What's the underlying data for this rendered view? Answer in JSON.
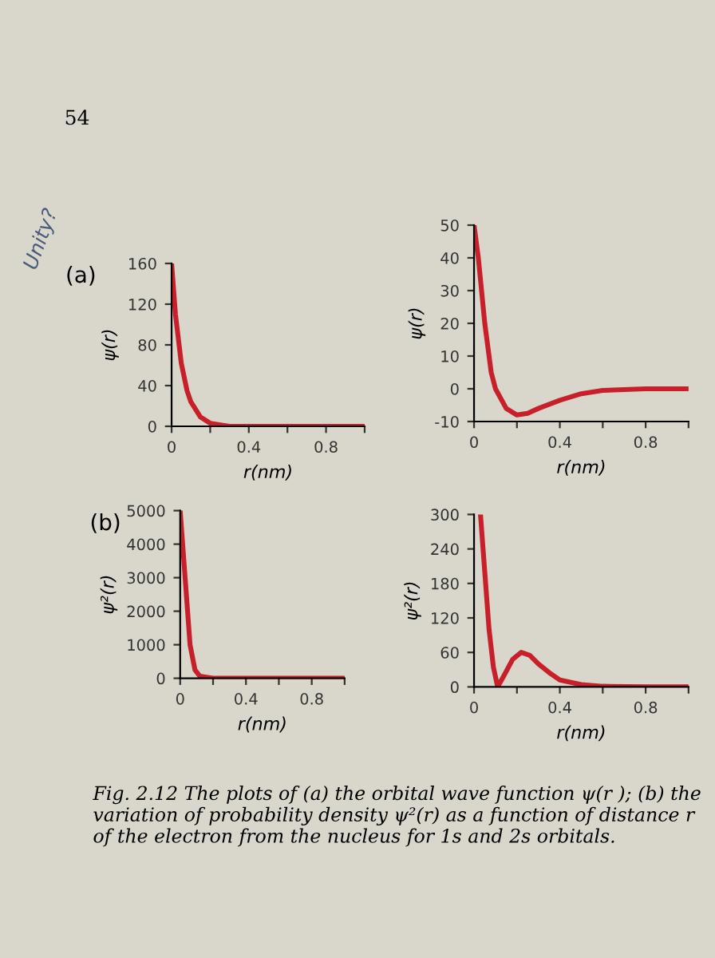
{
  "chart_data": [
    {
      "type": "line",
      "title": "(a)",
      "xlabel": "r(nm)",
      "ylabel": "ψ(r)",
      "annotations": [
        "54",
        "Unity?"
      ],
      "x": [
        0,
        0.02,
        0.05,
        0.08,
        0.1,
        0.15,
        0.2,
        0.3,
        0.5,
        1.0
      ],
      "series": [
        {
          "color": "#c8202a",
          "values": [
            160,
            110,
            62,
            35,
            24,
            9,
            3,
            0,
            0,
            0
          ]
        }
      ],
      "xlim": [
        0,
        1.0
      ],
      "xticks": [
        0,
        {
          "value": 0.2,
          "label": null
        },
        0.4,
        {
          "value": 0.6,
          "label": null
        },
        0.8,
        {
          "value": 1.0,
          "label": null
        }
      ],
      "ylim": [
        0,
        160
      ],
      "yticks": [
        0,
        40,
        80,
        120,
        160
      ],
      "grid": false
    },
    {
      "type": "line",
      "xlabel": "r(nm)",
      "ylabel": "ψ(r)",
      "x": [
        0,
        0.02,
        0.05,
        0.08,
        0.1,
        0.15,
        0.2,
        0.25,
        0.3,
        0.4,
        0.5,
        0.6,
        0.8,
        1.0
      ],
      "series": [
        {
          "color": "#c8202a",
          "values": [
            50,
            40,
            20,
            5,
            0,
            -6,
            -8,
            -7.5,
            -6,
            -3.5,
            -1.5,
            -0.5,
            0,
            0
          ]
        }
      ],
      "xlim": [
        0,
        1.0
      ],
      "xticks": [
        0,
        {
          "value": 0.2,
          "label": null
        },
        0.4,
        {
          "value": 0.6,
          "label": null
        },
        0.8,
        {
          "value": 1.0,
          "label": null
        }
      ],
      "ylim": [
        -10,
        50
      ],
      "yticks": [
        -10,
        0,
        10,
        20,
        30,
        40,
        50
      ],
      "grid": false
    },
    {
      "type": "line",
      "title": "(b)",
      "xlabel": "r(nm)",
      "ylabel": "ψ²(r)",
      "x": [
        0,
        0.03,
        0.06,
        0.09,
        0.12,
        0.2,
        0.4,
        1.0
      ],
      "series": [
        {
          "color": "#c8202a",
          "values": [
            5000,
            3000,
            1000,
            250,
            60,
            0,
            0,
            0
          ]
        }
      ],
      "xlim": [
        0,
        1.0
      ],
      "xticks": [
        0,
        {
          "value": 0.2,
          "label": null
        },
        0.4,
        {
          "value": 0.6,
          "label": null
        },
        0.8,
        {
          "value": 1.0,
          "label": null
        }
      ],
      "ylim": [
        0,
        5000
      ],
      "yticks": [
        0,
        1000,
        2000,
        3000,
        4000,
        5000
      ],
      "grid": false
    },
    {
      "type": "line",
      "xlabel": "r(nm)",
      "ylabel": "ψ²(r)",
      "annotations": [
        "Fig. 2.12 The plots of (a) the orbital wave function ψ(r ); (b) the variation of probability density ψ²(r) as a function of distance r of the electron from the nucleus for 1s and 2s orbitals."
      ],
      "x": [
        0.03,
        0.05,
        0.07,
        0.09,
        0.11,
        0.14,
        0.18,
        0.22,
        0.26,
        0.3,
        0.35,
        0.4,
        0.5,
        0.6,
        0.8,
        1.0
      ],
      "series": [
        {
          "color": "#c8202a",
          "values": [
            300,
            200,
            100,
            35,
            0,
            20,
            48,
            60,
            55,
            40,
            25,
            12,
            4,
            1,
            0,
            0
          ]
        }
      ],
      "xlim": [
        0,
        1.0
      ],
      "xticks": [
        0,
        {
          "value": 0.2,
          "label": null
        },
        0.4,
        {
          "value": 0.6,
          "label": null
        },
        0.8,
        {
          "value": 1.0,
          "label": null
        }
      ],
      "ylim": [
        0,
        300
      ],
      "yticks": [
        0,
        60,
        120,
        180,
        240,
        300
      ],
      "grid": false
    }
  ]
}
